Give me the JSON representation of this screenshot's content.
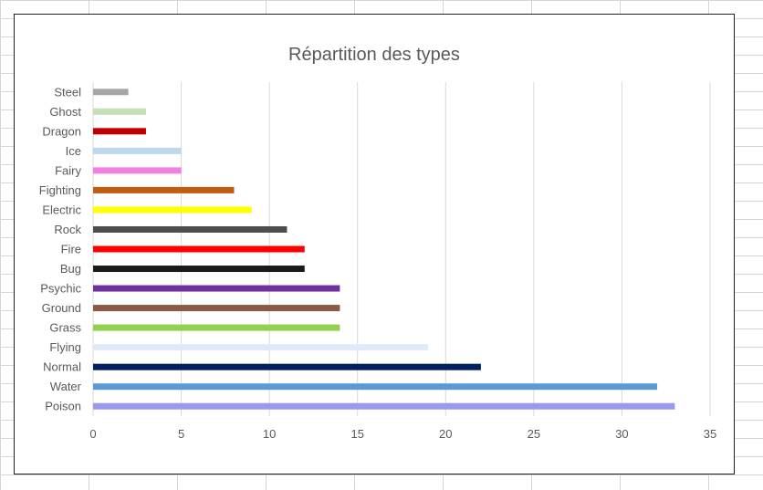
{
  "chart_data": {
    "type": "bar",
    "orientation": "horizontal",
    "title": "Répartition des types",
    "xlabel": "",
    "ylabel": "",
    "xlim": [
      0,
      35
    ],
    "xticks": [
      0,
      5,
      10,
      15,
      20,
      25,
      30,
      35
    ],
    "grid": "vertical",
    "legend": "none",
    "categories": [
      "Steel",
      "Ghost",
      "Dragon",
      "Ice",
      "Fairy",
      "Fighting",
      "Electric",
      "Rock",
      "Fire",
      "Bug",
      "Psychic",
      "Ground",
      "Grass",
      "Flying",
      "Normal",
      "Water",
      "Poison"
    ],
    "values": [
      2,
      3,
      3,
      5,
      5,
      8,
      9,
      11,
      12,
      12,
      14,
      14,
      14,
      19,
      22,
      32,
      33
    ],
    "colors": [
      "#a6a6a6",
      "#c5e0b4",
      "#c00000",
      "#bdd7ee",
      "#f27fde",
      "#c55a11",
      "#ffff00",
      "#4d4d4d",
      "#ff0000",
      "#1a1a1a",
      "#7030a0",
      "#8b5a44",
      "#92d050",
      "#deebf7",
      "#002060",
      "#5b9bd5",
      "#9999ee"
    ]
  }
}
